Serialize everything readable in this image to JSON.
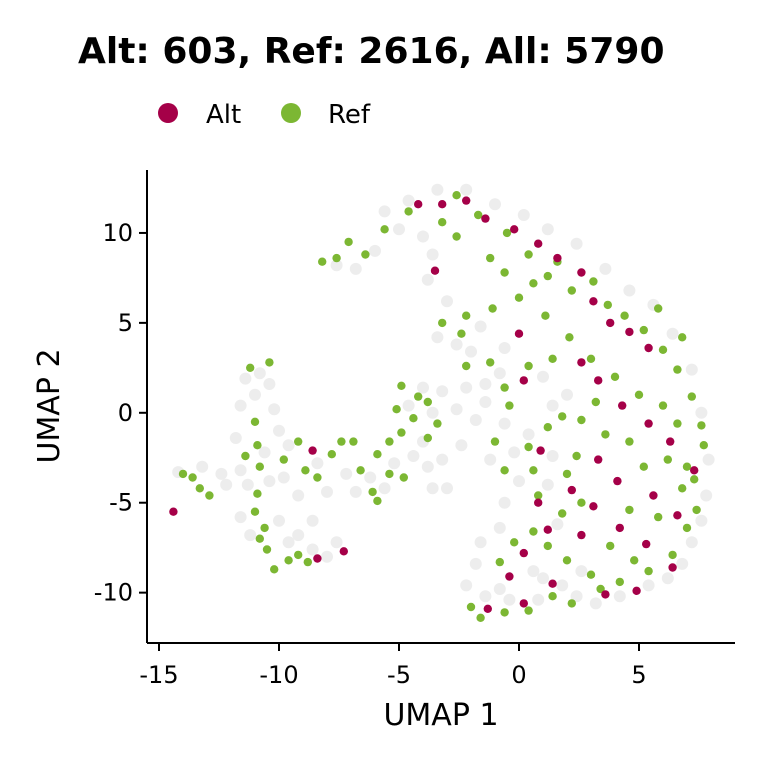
{
  "chart_data": {
    "type": "scatter",
    "title": "Alt: 603, Ref: 2616, All: 5790",
    "xlabel": "UMAP 1",
    "ylabel": "UMAP 2",
    "xlim": [
      -15.5,
      9
    ],
    "ylim": [
      -12.8,
      13.5
    ],
    "xticks": [
      -15,
      -10,
      -5,
      0,
      5
    ],
    "yticks": [
      10,
      5,
      0,
      -5,
      -10
    ],
    "xtick_labels": [
      "-15",
      "-10",
      "-5",
      "0",
      "5"
    ],
    "ytick_labels": [
      "10",
      "5",
      "0",
      "-5",
      "-10"
    ],
    "legend": {
      "position": "top-left",
      "entries": [
        {
          "label": "Alt",
          "color": "#A50048"
        },
        {
          "label": "Ref",
          "color": "#7CB733"
        }
      ]
    },
    "background_color": "#EDEDED",
    "grid": false,
    "series": [
      {
        "name": "Alt",
        "color": "#A50048",
        "count": 603,
        "points": [
          [
            -14.4,
            -5.5
          ],
          [
            -8.4,
            -8.1
          ],
          [
            -7.3,
            -7.7
          ],
          [
            -8.6,
            -2.1
          ],
          [
            -4.2,
            11.6
          ],
          [
            -3.2,
            11.6
          ],
          [
            -2.2,
            11.8
          ],
          [
            -1.4,
            10.8
          ],
          [
            -0.2,
            10.2
          ],
          [
            0.8,
            9.4
          ],
          [
            1.6,
            8.6
          ],
          [
            2.6,
            7.8
          ],
          [
            3.1,
            6.2
          ],
          [
            3.8,
            5.0
          ],
          [
            4.6,
            4.5
          ],
          [
            5.4,
            3.6
          ],
          [
            2.6,
            2.8
          ],
          [
            3.3,
            1.8
          ],
          [
            4.3,
            0.4
          ],
          [
            5.4,
            -0.6
          ],
          [
            6.3,
            -1.6
          ],
          [
            3.3,
            -2.6
          ],
          [
            4.1,
            -3.8
          ],
          [
            5.6,
            -4.6
          ],
          [
            6.6,
            -5.7
          ],
          [
            4.2,
            -6.4
          ],
          [
            3.1,
            -5.2
          ],
          [
            5.3,
            -7.3
          ],
          [
            1.2,
            -6.5
          ],
          [
            0.2,
            -7.8
          ],
          [
            0.2,
            -10.6
          ],
          [
            -1.3,
            -10.9
          ],
          [
            -0.4,
            -9.1
          ],
          [
            1.4,
            -9.5
          ],
          [
            -3.5,
            7.9
          ],
          [
            0.0,
            4.4
          ],
          [
            0.2,
            1.8
          ],
          [
            0.9,
            -2.1
          ],
          [
            2.2,
            -4.3
          ],
          [
            2.6,
            -6.8
          ],
          [
            6.4,
            -8.6
          ],
          [
            4.9,
            -9.9
          ],
          [
            3.6,
            -10.1
          ],
          [
            0.8,
            -5.0
          ],
          [
            7.3,
            -3.2
          ]
        ]
      },
      {
        "name": "Ref",
        "color": "#7CB733",
        "count": 2616,
        "points": [
          [
            -14.0,
            -3.4
          ],
          [
            -13.6,
            -3.6
          ],
          [
            -13.3,
            -4.2
          ],
          [
            -12.9,
            -4.6
          ],
          [
            -11.2,
            2.5
          ],
          [
            -10.4,
            2.8
          ],
          [
            -11.0,
            -0.5
          ],
          [
            -10.9,
            -1.8
          ],
          [
            -10.8,
            -3.0
          ],
          [
            -11.4,
            -2.4
          ],
          [
            -10.9,
            -4.5
          ],
          [
            -11.0,
            -5.5
          ],
          [
            -10.6,
            -6.4
          ],
          [
            -10.8,
            -7.0
          ],
          [
            -10.5,
            -7.6
          ],
          [
            -10.2,
            -8.7
          ],
          [
            -9.6,
            -8.2
          ],
          [
            -9.2,
            -7.9
          ],
          [
            -8.8,
            -8.3
          ],
          [
            -9.8,
            -2.6
          ],
          [
            -9.2,
            -1.6
          ],
          [
            -8.9,
            -3.2
          ],
          [
            -8.4,
            -3.6
          ],
          [
            -7.8,
            -2.3
          ],
          [
            -7.4,
            -1.6
          ],
          [
            -6.9,
            -1.6
          ],
          [
            -6.6,
            -3.2
          ],
          [
            -5.9,
            -2.3
          ],
          [
            -5.4,
            -1.6
          ],
          [
            -6.1,
            -4.4
          ],
          [
            -5.9,
            -4.9
          ],
          [
            -5.4,
            -3.4
          ],
          [
            -4.8,
            -3.6
          ],
          [
            -4.9,
            -1.1
          ],
          [
            -4.4,
            -0.3
          ],
          [
            -4.2,
            0.9
          ],
          [
            -4.9,
            1.5
          ],
          [
            -3.8,
            0.6
          ],
          [
            -3.8,
            -1.4
          ],
          [
            -3.4,
            -0.6
          ],
          [
            -5.1,
            0.2
          ],
          [
            -8.2,
            8.4
          ],
          [
            -7.6,
            8.6
          ],
          [
            -7.1,
            9.5
          ],
          [
            -6.4,
            8.8
          ],
          [
            -5.6,
            10.2
          ],
          [
            -4.6,
            11.2
          ],
          [
            -2.6,
            12.1
          ],
          [
            -1.7,
            11.0
          ],
          [
            -0.5,
            10.0
          ],
          [
            0.4,
            8.8
          ],
          [
            1.2,
            7.6
          ],
          [
            2.2,
            6.8
          ],
          [
            3.1,
            7.3
          ],
          [
            3.7,
            6.0
          ],
          [
            4.4,
            5.4
          ],
          [
            5.2,
            4.6
          ],
          [
            6.0,
            3.5
          ],
          [
            6.6,
            2.4
          ],
          [
            7.2,
            0.9
          ],
          [
            7.6,
            -0.7
          ],
          [
            7.7,
            -1.8
          ],
          [
            7.3,
            -3.7
          ],
          [
            7.4,
            -5.4
          ],
          [
            7.0,
            -6.4
          ],
          [
            6.4,
            -7.9
          ],
          [
            5.4,
            -8.8
          ],
          [
            4.2,
            -9.4
          ],
          [
            3.0,
            -9.0
          ],
          [
            2.0,
            -8.2
          ],
          [
            1.2,
            -7.4
          ],
          [
            0.6,
            -3.2
          ],
          [
            0.4,
            -1.9
          ],
          [
            -0.4,
            0.4
          ],
          [
            -0.6,
            1.4
          ],
          [
            -1.2,
            2.8
          ],
          [
            -2.2,
            2.6
          ],
          [
            -3.2,
            5.0
          ],
          [
            -2.2,
            5.4
          ],
          [
            -1.1,
            5.8
          ],
          [
            0.0,
            6.4
          ],
          [
            1.1,
            5.4
          ],
          [
            2.1,
            4.2
          ],
          [
            3.0,
            3.0
          ],
          [
            4.0,
            2.0
          ],
          [
            5.0,
            1.0
          ],
          [
            6.0,
            0.4
          ],
          [
            6.6,
            -0.6
          ],
          [
            6.2,
            -2.6
          ],
          [
            5.2,
            -3.0
          ],
          [
            3.6,
            -1.2
          ],
          [
            2.6,
            -0.4
          ],
          [
            1.8,
            -0.2
          ],
          [
            3.2,
            0.6
          ],
          [
            4.6,
            -1.6
          ],
          [
            2.4,
            -2.4
          ],
          [
            2.0,
            -3.4
          ],
          [
            2.6,
            -5.0
          ],
          [
            3.8,
            -7.4
          ],
          [
            4.8,
            -8.2
          ],
          [
            1.4,
            -10.2
          ],
          [
            0.4,
            -11.0
          ],
          [
            -0.6,
            -11.1
          ],
          [
            -1.6,
            -11.4
          ],
          [
            -2.0,
            -10.8
          ],
          [
            2.2,
            -10.6
          ],
          [
            3.4,
            -9.8
          ],
          [
            -2.6,
            9.8
          ],
          [
            -3.2,
            10.6
          ],
          [
            -1.2,
            8.6
          ],
          [
            0.6,
            7.2
          ],
          [
            1.6,
            8.4
          ],
          [
            -0.6,
            7.8
          ],
          [
            -2.4,
            4.4
          ],
          [
            1.4,
            3.0
          ],
          [
            0.4,
            2.6
          ],
          [
            1.2,
            -0.8
          ],
          [
            -1.0,
            -1.6
          ],
          [
            -0.6,
            -3.2
          ],
          [
            0.8,
            -4.6
          ],
          [
            1.8,
            -5.6
          ],
          [
            0.6,
            -6.6
          ],
          [
            -0.2,
            -7.2
          ],
          [
            -0.8,
            -8.3
          ],
          [
            5.8,
            -5.8
          ],
          [
            4.6,
            -5.4
          ],
          [
            6.8,
            -4.2
          ],
          [
            7.0,
            -3.0
          ],
          [
            6.8,
            4.2
          ],
          [
            5.8,
            5.8
          ]
        ]
      },
      {
        "name": "All",
        "color": "#EDEDED",
        "count": 5790,
        "points": [
          [
            -14.2,
            -3.3
          ],
          [
            -13.2,
            -3.0
          ],
          [
            -12.4,
            -3.4
          ],
          [
            -11.6,
            -3.2
          ],
          [
            -12.2,
            -4.0
          ],
          [
            -11.4,
            1.9
          ],
          [
            -10.8,
            2.2
          ],
          [
            -10.4,
            1.6
          ],
          [
            -11.0,
            1.0
          ],
          [
            -11.6,
            0.4
          ],
          [
            -10.2,
            0.2
          ],
          [
            -10.0,
            -1.0
          ],
          [
            -11.8,
            -1.4
          ],
          [
            -11.3,
            -4.0
          ],
          [
            -11.6,
            -5.8
          ],
          [
            -11.2,
            -6.8
          ],
          [
            -10.0,
            -6.0
          ],
          [
            -9.6,
            -7.2
          ],
          [
            -9.2,
            -6.8
          ],
          [
            -8.6,
            -7.6
          ],
          [
            -8.0,
            -8.0
          ],
          [
            -7.6,
            -7.2
          ],
          [
            -8.6,
            -6.0
          ],
          [
            -8.0,
            -4.4
          ],
          [
            -9.2,
            -4.6
          ],
          [
            -9.8,
            -3.6
          ],
          [
            -10.4,
            -3.8
          ],
          [
            -10.6,
            -2.2
          ],
          [
            -9.6,
            -1.8
          ],
          [
            -8.4,
            -2.8
          ],
          [
            -7.2,
            -3.4
          ],
          [
            -6.8,
            -4.4
          ],
          [
            -6.2,
            -3.6
          ],
          [
            -5.6,
            -4.2
          ],
          [
            -5.2,
            -2.8
          ],
          [
            -4.4,
            -2.4
          ],
          [
            -3.8,
            -3.0
          ],
          [
            -3.6,
            -4.2
          ],
          [
            -3.0,
            -4.2
          ],
          [
            -3.2,
            -2.6
          ],
          [
            -4.0,
            -1.6
          ],
          [
            -4.6,
            0.4
          ],
          [
            -4.0,
            1.4
          ],
          [
            -3.2,
            1.2
          ],
          [
            -3.6,
            0.0
          ],
          [
            -7.6,
            8.2
          ],
          [
            -6.8,
            8.0
          ],
          [
            -6.0,
            9.0
          ],
          [
            -5.0,
            10.2
          ],
          [
            -4.0,
            9.8
          ],
          [
            -3.6,
            8.8
          ],
          [
            -3.8,
            7.4
          ],
          [
            -3.0,
            6.2
          ],
          [
            -3.4,
            4.2
          ],
          [
            -2.6,
            3.8
          ],
          [
            -2.0,
            3.4
          ],
          [
            -1.6,
            4.8
          ],
          [
            -0.6,
            3.6
          ],
          [
            -0.8,
            2.2
          ],
          [
            -1.4,
            1.6
          ],
          [
            -2.2,
            1.4
          ],
          [
            -1.4,
            0.6
          ],
          [
            -0.6,
            -0.6
          ],
          [
            -0.2,
            -2.2
          ],
          [
            0.0,
            -3.8
          ],
          [
            -0.6,
            -5.0
          ],
          [
            -0.8,
            -6.4
          ],
          [
            -1.6,
            -7.2
          ],
          [
            -1.8,
            -8.4
          ],
          [
            -2.2,
            -9.6
          ],
          [
            -1.4,
            -10.2
          ],
          [
            -0.4,
            -10.4
          ],
          [
            0.8,
            -10.4
          ],
          [
            1.8,
            -9.6
          ],
          [
            2.4,
            -10.2
          ],
          [
            3.2,
            -10.6
          ],
          [
            4.2,
            -10.2
          ],
          [
            5.4,
            -9.6
          ],
          [
            6.2,
            -9.2
          ],
          [
            6.8,
            -8.4
          ],
          [
            7.2,
            -7.2
          ],
          [
            7.6,
            -6.0
          ],
          [
            7.8,
            -4.6
          ],
          [
            7.9,
            -2.6
          ],
          [
            7.6,
            0.0
          ],
          [
            7.2,
            2.4
          ],
          [
            6.4,
            4.4
          ],
          [
            5.6,
            6.0
          ],
          [
            4.6,
            6.8
          ],
          [
            3.6,
            8.0
          ],
          [
            2.4,
            9.4
          ],
          [
            1.2,
            10.2
          ],
          [
            0.2,
            11.0
          ],
          [
            -1.0,
            11.6
          ],
          [
            -2.2,
            12.4
          ],
          [
            -3.4,
            12.4
          ],
          [
            -4.6,
            11.8
          ],
          [
            -5.6,
            11.2
          ],
          [
            1.4,
            0.4
          ],
          [
            2.0,
            1.0
          ],
          [
            1.0,
            2.0
          ],
          [
            0.4,
            -1.2
          ],
          [
            1.4,
            -2.4
          ],
          [
            1.2,
            -4.0
          ],
          [
            1.6,
            -6.2
          ],
          [
            0.6,
            -8.8
          ],
          [
            1.0,
            -9.2
          ],
          [
            2.6,
            -8.8
          ],
          [
            -0.8,
            -9.8
          ],
          [
            -1.2,
            -2.6
          ],
          [
            -1.8,
            -0.4
          ],
          [
            -2.6,
            0.2
          ],
          [
            -2.4,
            -1.8
          ]
        ]
      }
    ]
  }
}
